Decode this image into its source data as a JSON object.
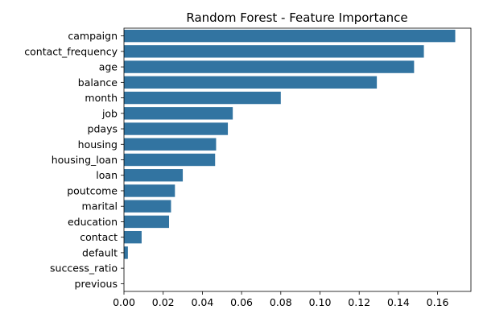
{
  "chart_data": {
    "type": "bar",
    "orientation": "horizontal",
    "title": "Random Forest - Feature Importance",
    "xlabel": "",
    "ylabel": "",
    "categories": [
      "campaign",
      "contact_frequency",
      "age",
      "balance",
      "month",
      "job",
      "pdays",
      "housing",
      "housing_loan",
      "loan",
      "poutcome",
      "marital",
      "education",
      "contact",
      "default",
      "success_ratio",
      "previous"
    ],
    "values": [
      0.169,
      0.153,
      0.148,
      0.129,
      0.08,
      0.0555,
      0.053,
      0.047,
      0.0465,
      0.03,
      0.026,
      0.024,
      0.023,
      0.009,
      0.002,
      0.0,
      0.0
    ],
    "xlim": [
      0.0,
      0.177
    ],
    "xticks": [
      0.0,
      0.02,
      0.04,
      0.06,
      0.08,
      0.1,
      0.12,
      0.14,
      0.16
    ],
    "xtick_labels": [
      "0.00",
      "0.02",
      "0.04",
      "0.06",
      "0.08",
      "0.10",
      "0.12",
      "0.14",
      "0.16"
    ],
    "bar_color": "#3274a1",
    "grid": false,
    "legend": "none"
  }
}
